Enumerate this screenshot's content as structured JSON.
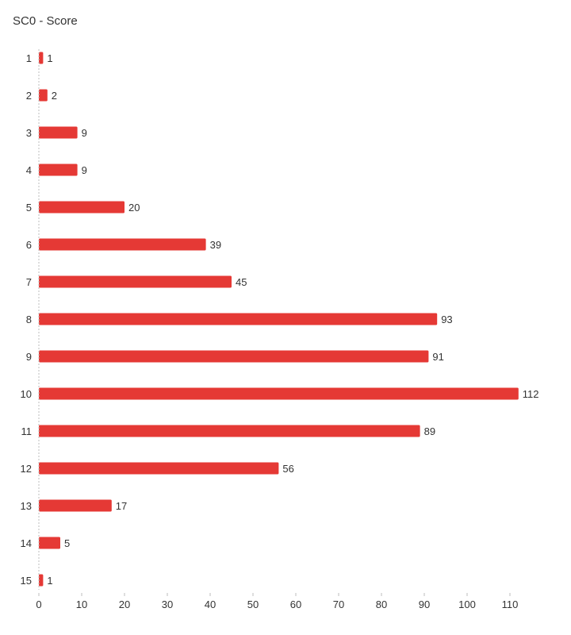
{
  "chart_data": {
    "type": "bar",
    "orientation": "horizontal",
    "title": "SC0 - Score",
    "xlabel": "",
    "ylabel": "",
    "categories": [
      "1",
      "2",
      "3",
      "4",
      "5",
      "6",
      "7",
      "8",
      "9",
      "10",
      "11",
      "12",
      "13",
      "14",
      "15"
    ],
    "values": [
      1,
      2,
      9,
      9,
      20,
      39,
      45,
      93,
      91,
      112,
      89,
      56,
      17,
      5,
      1
    ],
    "xlim": [
      0,
      120
    ],
    "xticks": [
      0,
      10,
      20,
      30,
      40,
      50,
      60,
      70,
      80,
      90,
      100,
      110
    ],
    "bar_color": "#e53935",
    "grid": false,
    "data_labels": true
  }
}
